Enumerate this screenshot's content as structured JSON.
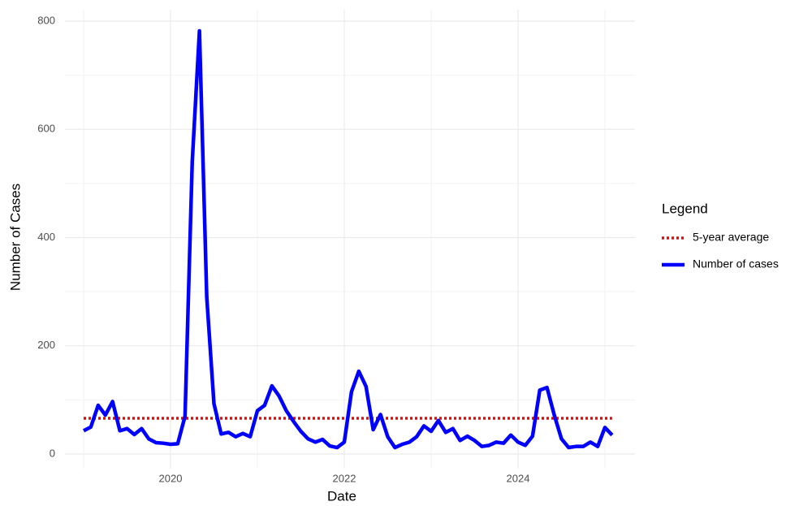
{
  "chart_data": {
    "type": "line",
    "x_label": "Date",
    "y_label": "Number of Cases",
    "legend_title": "Legend",
    "x": [
      2019,
      2019.083,
      2019.167,
      2019.25,
      2019.333,
      2019.417,
      2019.5,
      2019.583,
      2019.667,
      2019.75,
      2019.833,
      2019.917,
      2020,
      2020.083,
      2020.167,
      2020.25,
      2020.333,
      2020.417,
      2020.5,
      2020.583,
      2020.667,
      2020.75,
      2020.833,
      2020.917,
      2021,
      2021.083,
      2021.167,
      2021.25,
      2021.333,
      2021.417,
      2021.5,
      2021.583,
      2021.667,
      2021.75,
      2021.833,
      2021.917,
      2022,
      2022.083,
      2022.167,
      2022.25,
      2022.333,
      2022.417,
      2022.5,
      2022.583,
      2022.667,
      2022.75,
      2022.833,
      2022.917,
      2023,
      2023.083,
      2023.167,
      2023.25,
      2023.333,
      2023.417,
      2023.5,
      2023.583,
      2023.667,
      2023.75,
      2023.833,
      2023.917,
      2024,
      2024.083,
      2024.167,
      2024.25,
      2024.333,
      2024.417,
      2024.5,
      2024.583,
      2024.667,
      2024.75,
      2024.833,
      2024.917,
      2025,
      2025.083
    ],
    "series": [
      {
        "name": "5-year average",
        "color": "#ff0000",
        "dash": true,
        "values": [
          66,
          66,
          66,
          66,
          66,
          66,
          66,
          66,
          66,
          66,
          66,
          66,
          66,
          66,
          66,
          66,
          66,
          66,
          66,
          66,
          66,
          66,
          66,
          66,
          66,
          66,
          66,
          66,
          66,
          66,
          66,
          66,
          66,
          66,
          66,
          66,
          66,
          66,
          66,
          66,
          66,
          66,
          66,
          66,
          66,
          66,
          66,
          66,
          66,
          66,
          66,
          66,
          66,
          66,
          66,
          66,
          66,
          66,
          66,
          66,
          66,
          66,
          66,
          66,
          66,
          66,
          66,
          66,
          66,
          66,
          66,
          66,
          66,
          66
        ]
      },
      {
        "name": "Number of cases",
        "color": "#0000ff",
        "dash": false,
        "values": [
          43,
          50,
          90,
          72,
          97,
          43,
          47,
          36,
          47,
          28,
          21,
          20,
          18,
          19,
          70,
          540,
          782,
          290,
          93,
          37,
          40,
          32,
          38,
          32,
          80,
          90,
          126,
          107,
          80,
          60,
          42,
          28,
          22,
          27,
          15,
          12,
          22,
          115,
          153,
          125,
          45,
          73,
          32,
          12,
          18,
          22,
          32,
          52,
          42,
          62,
          40,
          47,
          25,
          33,
          25,
          14,
          16,
          22,
          20,
          35,
          22,
          16,
          33,
          118,
          123,
          72,
          28,
          12,
          14,
          14,
          22,
          14,
          49,
          35
        ]
      }
    ],
    "xlim": [
      2018.785,
      2025.346
    ],
    "xticks": [
      2020,
      2022,
      2024
    ],
    "ylim": [
      -27,
      821
    ],
    "yticks": [
      0,
      200,
      400,
      600,
      800
    ],
    "grid": true
  }
}
